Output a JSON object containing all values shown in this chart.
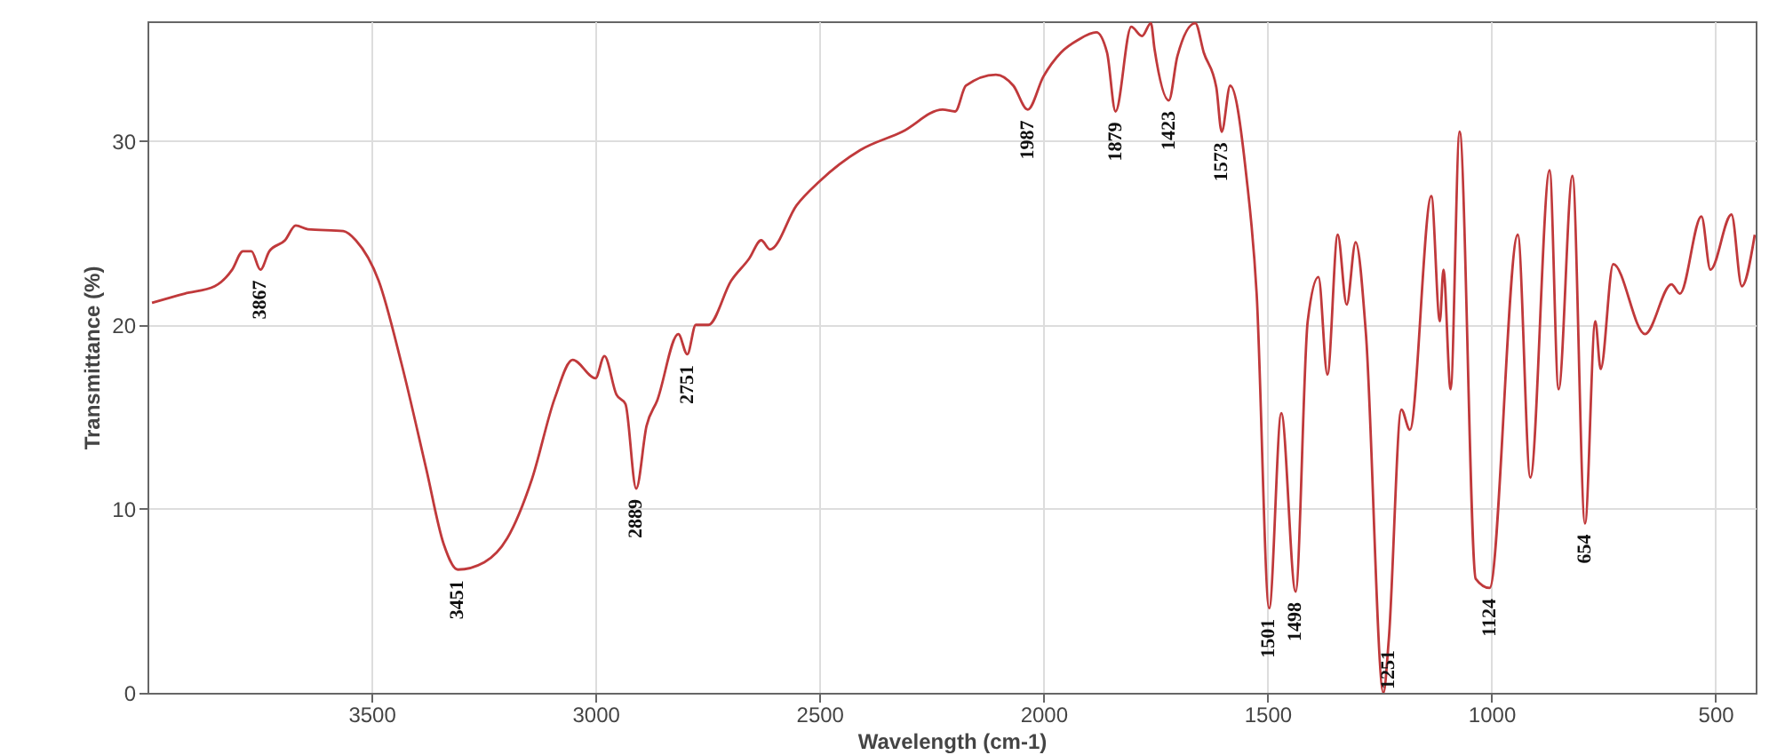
{
  "chart_data": {
    "type": "line",
    "xlabel": "Wavelength (cm-1)",
    "ylabel": "Transmittance (%)",
    "xlim": [
      4000,
      410
    ],
    "ylim": [
      0,
      36.5
    ],
    "xticks": [
      3500,
      3000,
      2500,
      2000,
      1500,
      1000,
      500
    ],
    "yticks": [
      0,
      10,
      20,
      30
    ],
    "grid": true,
    "series": [
      {
        "color": "#c0393b",
        "x": [
          3990,
          3917,
          3850,
          3811,
          3787,
          3768,
          3748,
          3728,
          3693,
          3669,
          3642,
          3563,
          3535,
          3484,
          3433,
          3378,
          3339,
          3307,
          3248,
          3197,
          3142,
          3091,
          3051,
          3000,
          2980,
          2953,
          2933,
          2909,
          2886,
          2862,
          2815,
          2795,
          2776,
          2748,
          2697,
          2657,
          2630,
          2610,
          2551,
          2500,
          2409,
          2315,
          2225,
          2197,
          2173,
          2106,
          2067,
          2035,
          2000,
          1961,
          1922,
          1882,
          1858,
          1839,
          1804,
          1780,
          1760,
          1752,
          1720,
          1701,
          1661,
          1642,
          1614,
          1602,
          1583,
          1547,
          1524,
          1496,
          1469,
          1437,
          1410,
          1386,
          1366,
          1343,
          1323,
          1303,
          1280,
          1241,
          1229,
          1201,
          1182,
          1134,
          1115,
          1107,
          1091,
          1071,
          1035,
          1004,
          941,
          913,
          870,
          850,
          819,
          791,
          768,
          756,
          728,
          657,
          598,
          579,
          531,
          511,
          464,
          441,
          412
        ],
        "values": [
          21.2,
          21.7,
          22.1,
          23.0,
          24.0,
          24.0,
          23.0,
          24.0,
          24.6,
          25.4,
          25.2,
          25.1,
          24.6,
          22.4,
          17.9,
          12.2,
          8.1,
          6.7,
          7.1,
          8.4,
          11.6,
          16.0,
          18.1,
          17.1,
          18.3,
          16.2,
          15.7,
          11.1,
          14.5,
          15.9,
          19.5,
          18.4,
          20.0,
          20.0,
          22.4,
          23.6,
          24.6,
          24.1,
          26.5,
          27.8,
          29.5,
          30.5,
          31.7,
          31.6,
          33.0,
          33.6,
          33.0,
          31.7,
          33.5,
          34.8,
          35.5,
          35.9,
          34.8,
          31.6,
          36.2,
          35.7,
          36.4,
          35.0,
          32.2,
          34.6,
          36.4,
          34.8,
          32.9,
          30.5,
          33.0,
          28.1,
          21.7,
          4.6,
          15.2,
          5.5,
          20.2,
          22.6,
          17.3,
          24.9,
          21.1,
          24.5,
          19.5,
          0.0,
          2.9,
          15.4,
          14.3,
          27.0,
          20.2,
          23.0,
          16.5,
          30.5,
          6.2,
          5.7,
          24.9,
          11.7,
          28.4,
          16.5,
          28.1,
          9.2,
          20.2,
          17.6,
          23.3,
          19.5,
          22.2,
          21.7,
          25.9,
          23.0,
          26.0,
          22.1,
          24.9
        ]
      }
    ],
    "annotations": [
      {
        "text": "3867",
        "x": 3748,
        "y": 23.0
      },
      {
        "text": "3451",
        "x": 3307,
        "y": 6.7
      },
      {
        "text": "2889",
        "x": 2909,
        "y": 11.1
      },
      {
        "text": "2751",
        "x": 2795,
        "y": 18.4
      },
      {
        "text": "1987",
        "x": 2035,
        "y": 31.7
      },
      {
        "text": "1879",
        "x": 1839,
        "y": 31.6
      },
      {
        "text": "1423",
        "x": 1720,
        "y": 32.2
      },
      {
        "text": "1573",
        "x": 1602,
        "y": 30.5
      },
      {
        "text": "1501",
        "x": 1496,
        "y": 4.6
      },
      {
        "text": "1498",
        "x": 1437,
        "y": 5.5
      },
      {
        "text": "1251",
        "x": 1229,
        "y": 2.9
      },
      {
        "text": "1124",
        "x": 1004,
        "y": 5.7
      },
      {
        "text": "654",
        "x": 791,
        "y": 9.2
      }
    ]
  }
}
